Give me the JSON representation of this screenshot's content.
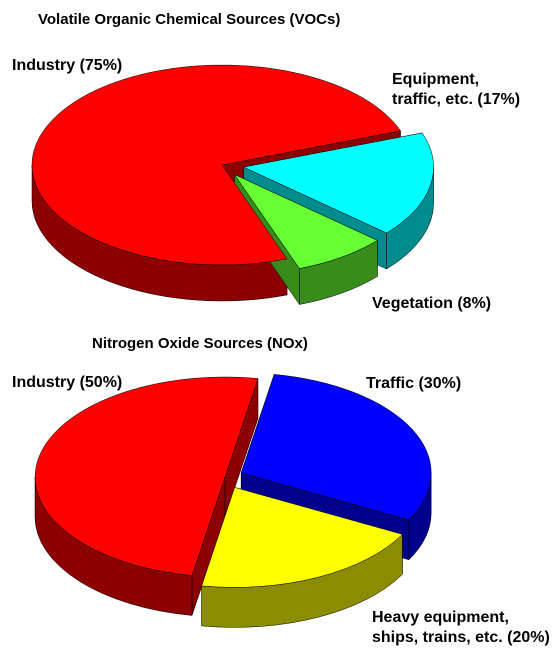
{
  "chart_data": [
    {
      "type": "pie3d",
      "title": "Volatile Organic Chemical Sources (VOCs)",
      "values": [
        75,
        17,
        8
      ],
      "value_labels": [
        "Industry (75%)",
        "Equipment,\ntraffic, etc. (17%)",
        "Vegetation (8%)"
      ],
      "colors": [
        "#ff0000",
        "#00ffff",
        "#66ff33"
      ]
    },
    {
      "type": "pie3d",
      "title": "Nitrogen Oxide Sources (NOx)",
      "values": [
        50,
        30,
        20
      ],
      "value_labels": [
        "Industry (50%)",
        "Traffic (30%)",
        "Heavy equipment,\nships, trains, etc. (20%)"
      ],
      "colors": [
        "#ff0000",
        "#0000ff",
        "#ffff00"
      ]
    }
  ]
}
